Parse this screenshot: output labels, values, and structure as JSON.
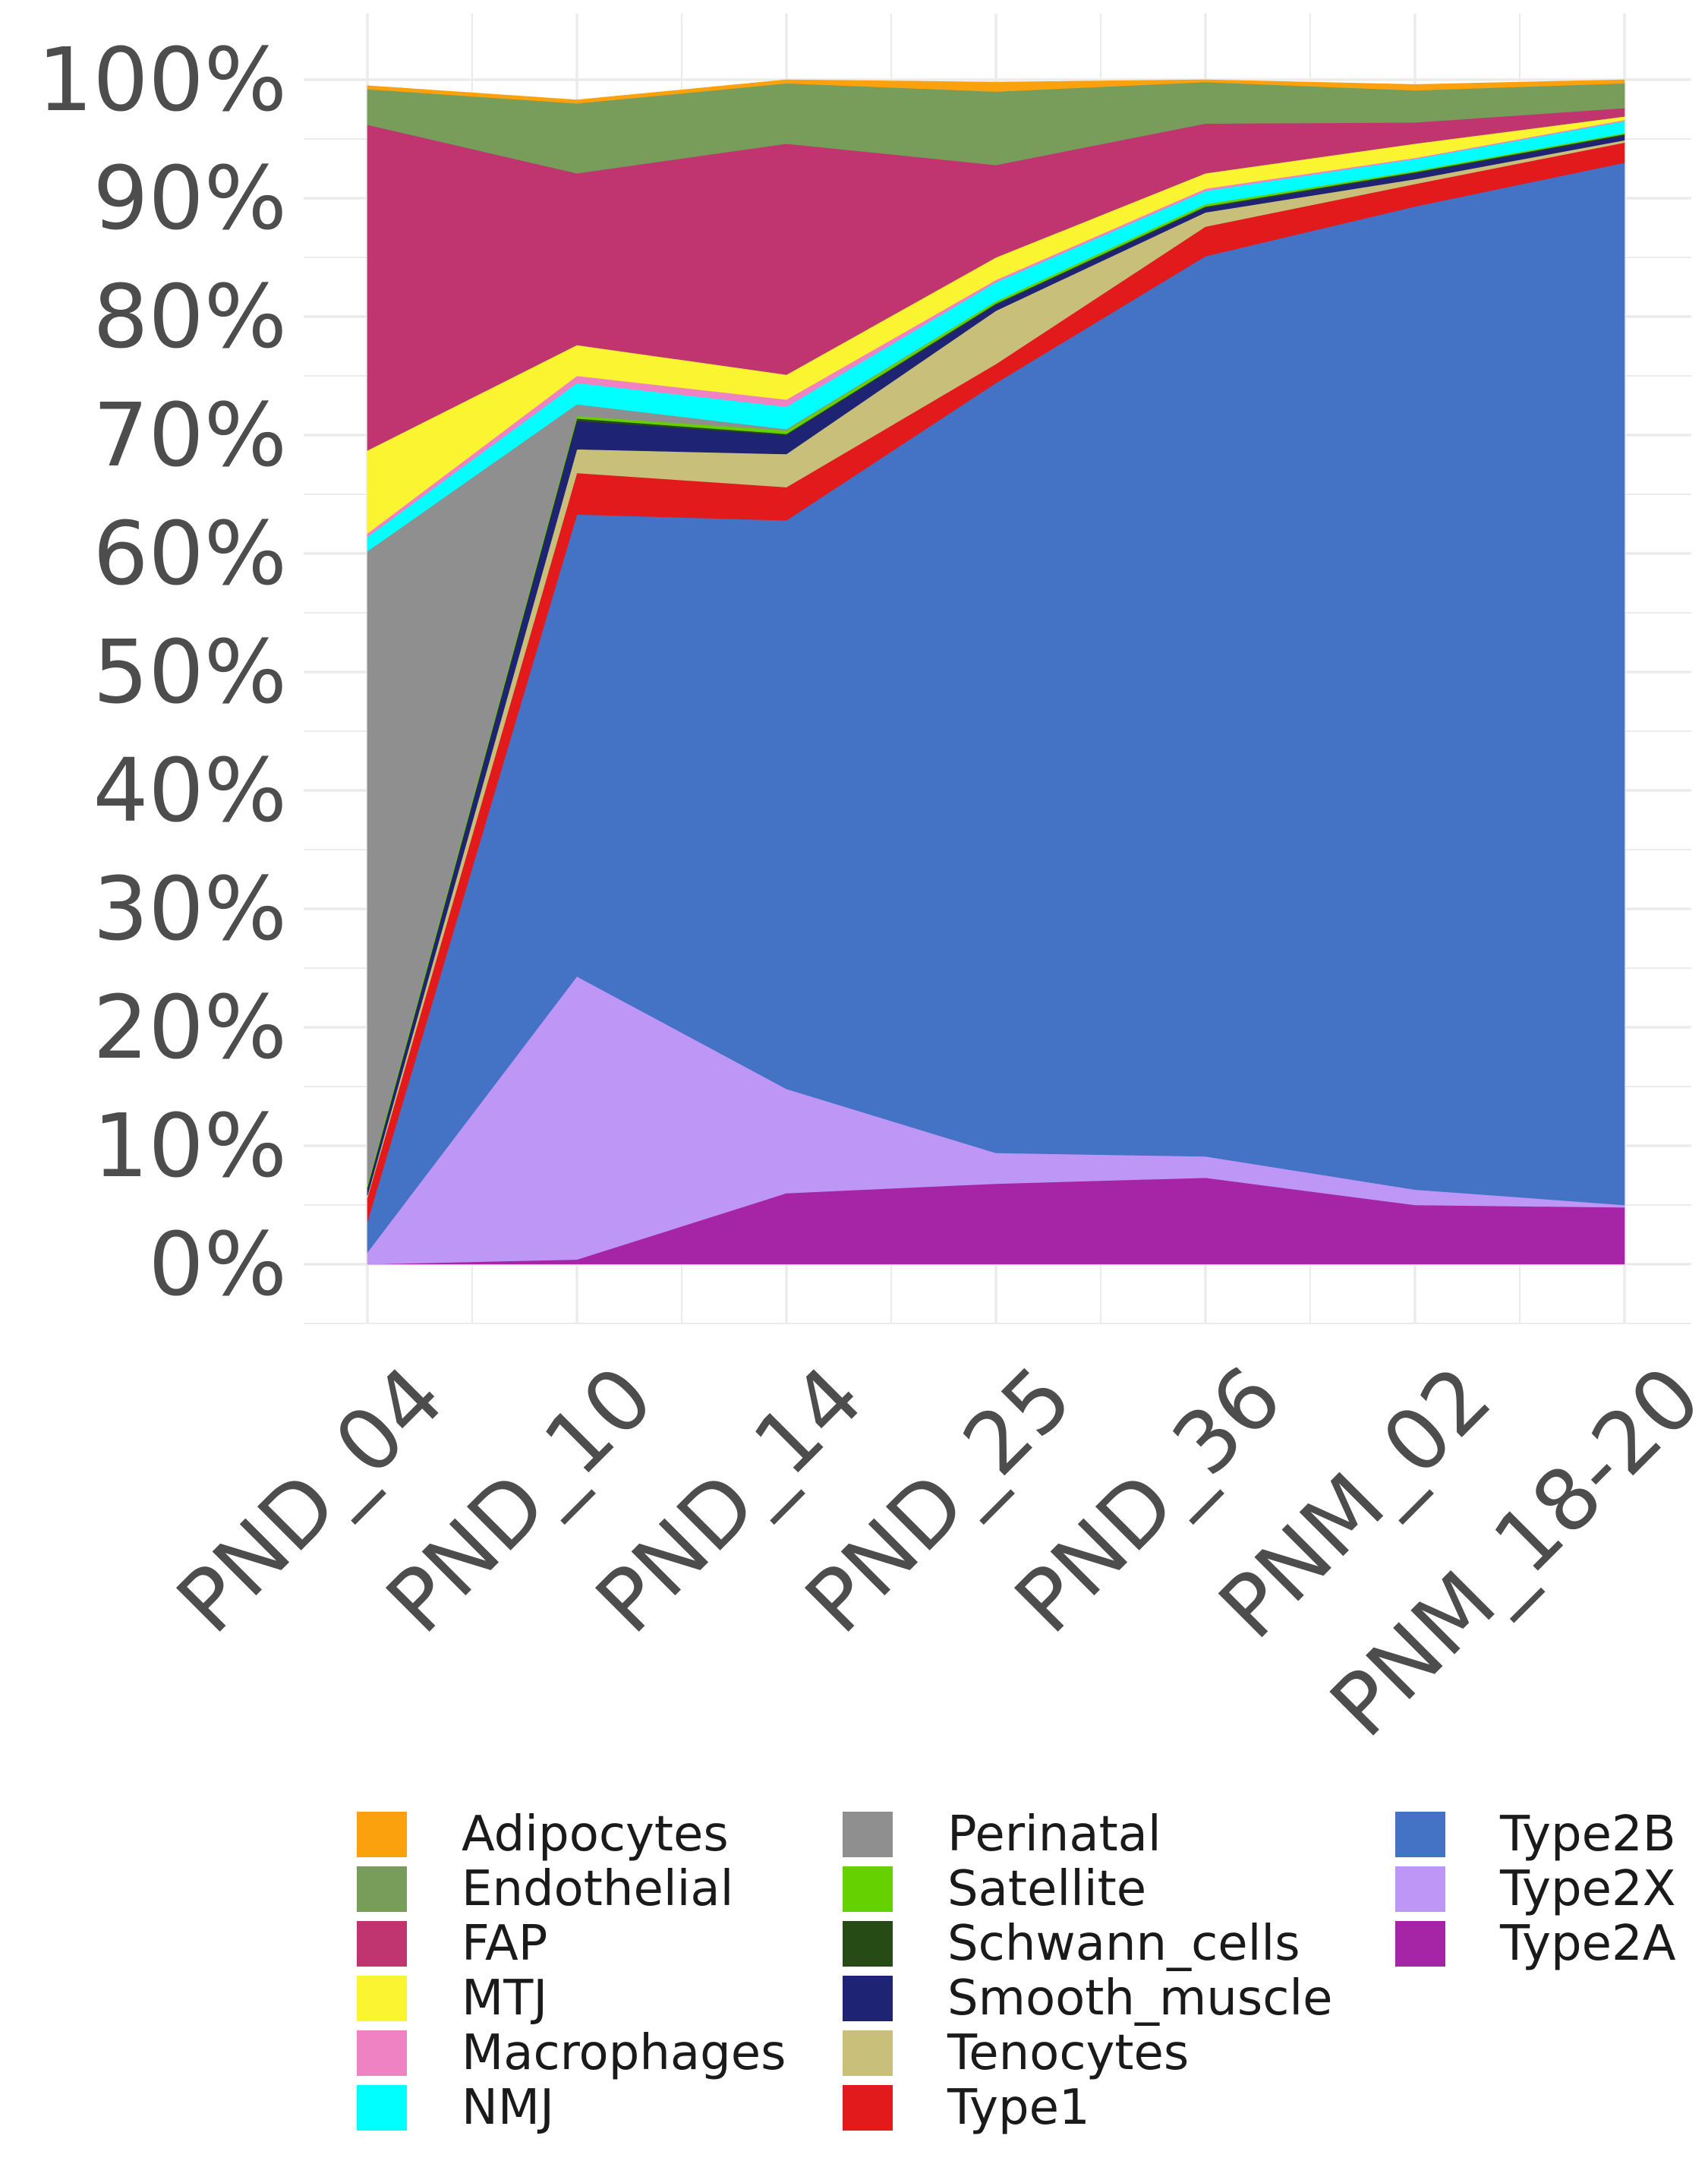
{
  "chart_data": {
    "type": "area",
    "stacked": true,
    "normalized": true,
    "x": [
      "PND_04",
      "PND_10",
      "PND_14",
      "PND_25",
      "PND_36",
      "PNM_02",
      "PNM_18-20"
    ],
    "y_ticks": [
      "0%",
      "10%",
      "20%",
      "30%",
      "40%",
      "50%",
      "60%",
      "70%",
      "80%",
      "90%",
      "100%"
    ],
    "ylim": [
      0,
      100
    ],
    "grid": true,
    "legend_position": "bottom",
    "stack_order_bottom_to_top": [
      "Type2A",
      "Type2X",
      "Type2B",
      "Type1",
      "Tenocytes",
      "Smooth_muscle",
      "Schwann_cells",
      "Satellite",
      "Perinatal",
      "NMJ",
      "Macrophages",
      "MTJ",
      "FAP",
      "Endothelial",
      "Adipocytes"
    ],
    "series": [
      {
        "name": "Type2A",
        "color": "#A624A6",
        "values": [
          0.0,
          0.4,
          6.0,
          6.8,
          7.3,
          5.0,
          4.8
        ]
      },
      {
        "name": "Type2X",
        "color": "#BE96F5",
        "values": [
          1.0,
          23.9,
          8.8,
          2.6,
          1.8,
          1.3,
          0.2
        ]
      },
      {
        "name": "Type2B",
        "color": "#4472C4",
        "values": [
          2.6,
          39.0,
          48.0,
          65.0,
          76.0,
          83.0,
          88.0
        ]
      },
      {
        "name": "Type1",
        "color": "#E31A1C",
        "values": [
          2.0,
          3.5,
          2.8,
          1.6,
          2.5,
          1.9,
          1.7
        ]
      },
      {
        "name": "Tenocytes",
        "color": "#C8C07A",
        "values": [
          0.2,
          2.0,
          2.8,
          4.5,
          1.2,
          0.4,
          0.2
        ]
      },
      {
        "name": "Smooth_muscle",
        "color": "#1F2374",
        "values": [
          0.6,
          2.4,
          1.6,
          0.5,
          0.4,
          0.5,
          0.4
        ]
      },
      {
        "name": "Schwann_cells",
        "color": "#264B14",
        "values": [
          0.1,
          0.2,
          0.1,
          0.1,
          0.1,
          0.1,
          0.1
        ]
      },
      {
        "name": "Satellite",
        "color": "#66D100",
        "values": [
          0.2,
          0.2,
          0.3,
          0.2,
          0.2,
          0.1,
          0.1
        ]
      },
      {
        "name": "Perinatal",
        "color": "#8F8F8F",
        "values": [
          53.5,
          1.0,
          0.1,
          0.0,
          0.0,
          0.0,
          0.0
        ]
      },
      {
        "name": "NMJ",
        "color": "#00FFFF",
        "values": [
          1.2,
          1.8,
          1.9,
          1.6,
          1.1,
          1.0,
          1.0
        ]
      },
      {
        "name": "Macrophages",
        "color": "#EE82C2",
        "values": [
          0.3,
          0.6,
          0.6,
          0.2,
          0.2,
          0.1,
          0.1
        ]
      },
      {
        "name": "MTJ",
        "color": "#FAF530",
        "values": [
          7.0,
          2.6,
          2.1,
          1.9,
          1.3,
          1.2,
          0.3
        ]
      },
      {
        "name": "FAP",
        "color": "#C03570",
        "values": [
          27.5,
          14.5,
          19.5,
          7.8,
          4.2,
          1.8,
          0.7
        ]
      },
      {
        "name": "Endothelial",
        "color": "#789C59",
        "values": [
          3.0,
          5.9,
          5.1,
          6.2,
          3.5,
          2.7,
          2.1
        ]
      },
      {
        "name": "Adipocytes",
        "color": "#FBA10E",
        "values": [
          0.3,
          0.3,
          0.3,
          0.8,
          0.2,
          0.5,
          0.3
        ]
      }
    ]
  },
  "legend": {
    "columns": [
      [
        {
          "label": "Adipocytes",
          "color": "#FBA10E"
        },
        {
          "label": "Endothelial",
          "color": "#789C59"
        },
        {
          "label": "FAP",
          "color": "#C03570"
        },
        {
          "label": "MTJ",
          "color": "#FAF530"
        },
        {
          "label": "Macrophages",
          "color": "#EE82C2"
        },
        {
          "label": "NMJ",
          "color": "#00FFFF"
        }
      ],
      [
        {
          "label": "Perinatal",
          "color": "#8F8F8F"
        },
        {
          "label": "Satellite",
          "color": "#66D100"
        },
        {
          "label": "Schwann_cells",
          "color": "#264B14"
        },
        {
          "label": "Smooth_muscle",
          "color": "#1F2374"
        },
        {
          "label": "Tenocytes",
          "color": "#C8C07A"
        },
        {
          "label": "Type1",
          "color": "#E31A1C"
        }
      ],
      [
        {
          "label": "Type2B",
          "color": "#4472C4"
        },
        {
          "label": "Type2X",
          "color": "#BE96F5"
        },
        {
          "label": "Type2A",
          "color": "#A624A6"
        }
      ]
    ]
  }
}
